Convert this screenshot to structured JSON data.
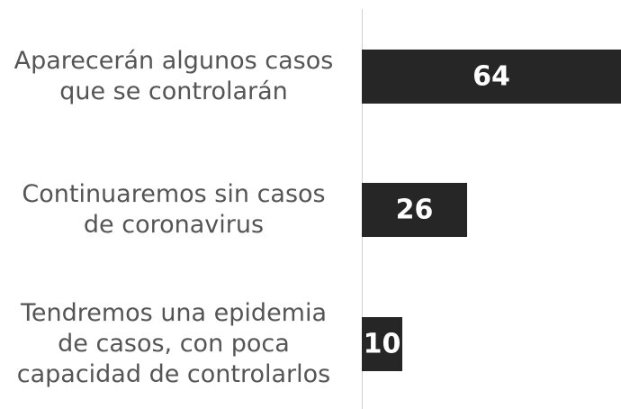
{
  "chart_data": {
    "type": "bar",
    "orientation": "horizontal",
    "categories": [
      "Aparecerán algunos casos que se controlarán",
      "Continuaremos sin casos de coronavirus",
      "Tendremos una epidemia de casos, con poca capacidad de controlarlos"
    ],
    "values": [
      64,
      26,
      10
    ],
    "color": "#262626",
    "xlim": [
      0,
      64
    ]
  }
}
